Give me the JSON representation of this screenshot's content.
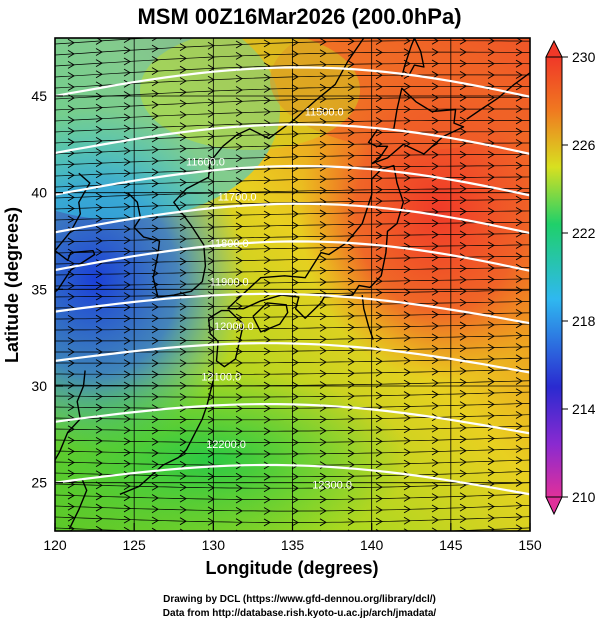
{
  "title": "MSM 00Z16Mar2026 (200.0hPa)",
  "axes": {
    "xlabel": "Longitude (degrees)",
    "ylabel": "Latitude  (degrees)",
    "xticks": [
      "120",
      "125",
      "130",
      "135",
      "140",
      "145",
      "150"
    ],
    "yticks": [
      "25",
      "30",
      "35",
      "40",
      "45"
    ]
  },
  "colorbar": {
    "ticks": [
      "230",
      "226",
      "222",
      "218",
      "214",
      "210"
    ],
    "colors": [
      "#e0309a",
      "#2a2ad0",
      "#2fb8f0",
      "#1fd06a",
      "#d8e020",
      "#f07820",
      "#f03828"
    ]
  },
  "contour_labels": [
    {
      "text": "11500.0",
      "lon": 137.0,
      "lat": 44.2
    },
    {
      "text": "11600.0",
      "lon": 129.5,
      "lat": 41.6
    },
    {
      "text": "11700.0",
      "lon": 131.5,
      "lat": 39.8
    },
    {
      "text": "11800.0",
      "lon": 131.0,
      "lat": 37.4
    },
    {
      "text": "11900.0",
      "lon": 131.0,
      "lat": 35.4
    },
    {
      "text": "12000.0",
      "lon": 131.3,
      "lat": 33.1
    },
    {
      "text": "12100.0",
      "lon": 130.5,
      "lat": 30.5
    },
    {
      "text": "12200.0",
      "lon": 130.8,
      "lat": 27.0
    },
    {
      "text": "12300.0",
      "lon": 137.5,
      "lat": 24.9
    }
  ],
  "credits": {
    "line1": "Drawing by DCL (https://www.gfd-dennou.org/library/dcl/)",
    "line2": "Data from http://database.rish.kyoto-u.ac.jp/arch/jmadata/"
  }
}
